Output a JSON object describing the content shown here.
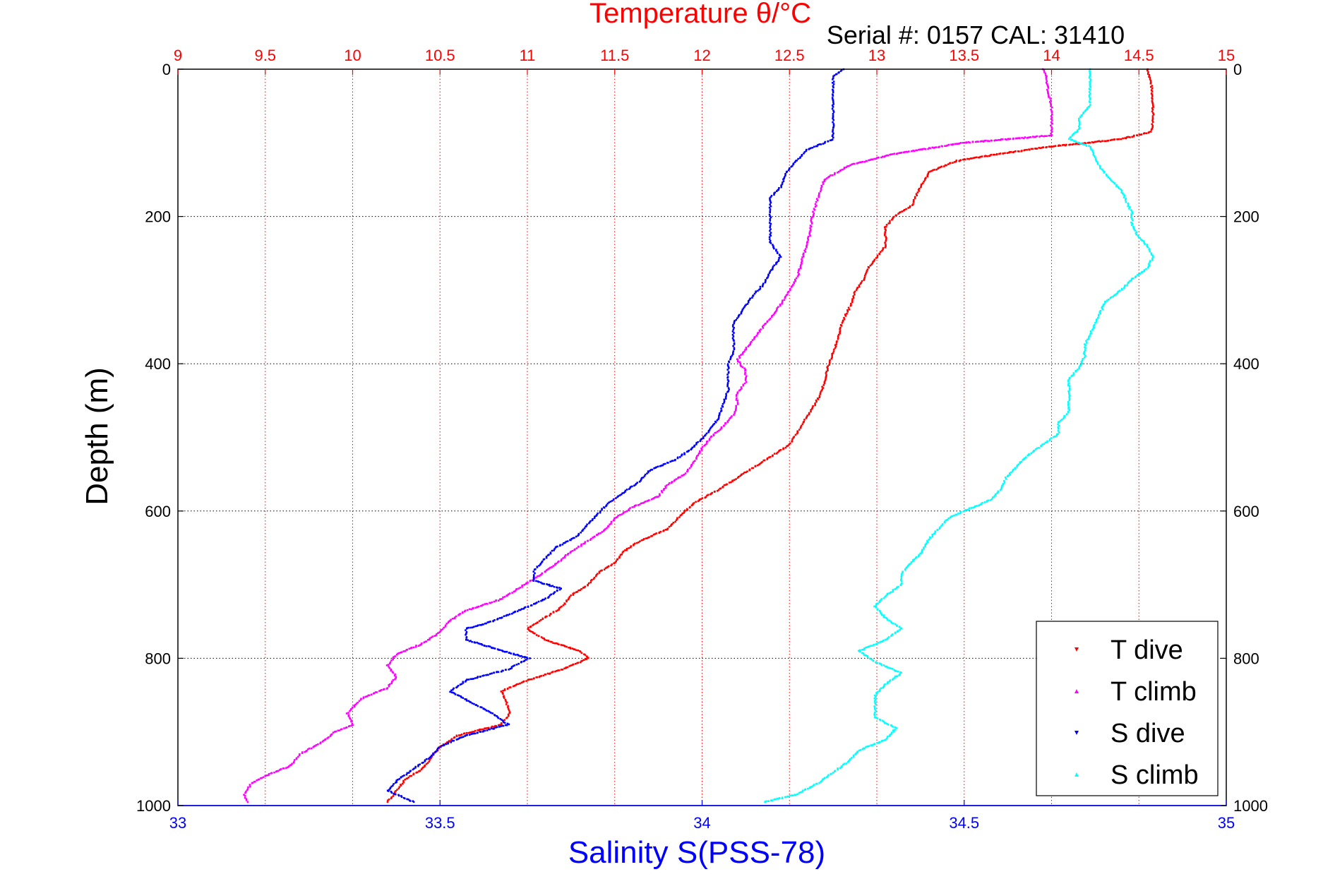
{
  "chart_data": {
    "type": "scatter",
    "title": "Temperature θ/°C",
    "subtitle": "Serial #: 0157  CAL: 31410",
    "xlabel": "Salinity S(PSS-78)",
    "ylabel": "Depth (m)",
    "x_bottom": {
      "label": "Salinity S(PSS-78)",
      "range": [
        33,
        35
      ],
      "ticks": [
        "33",
        "33.5",
        "34",
        "34.5",
        "35"
      ],
      "color": "#0000ff"
    },
    "x_top": {
      "label": "Temperature θ/°C",
      "range": [
        9,
        15
      ],
      "ticks": [
        "9",
        "9.5",
        "10",
        "10.5",
        "11",
        "11.5",
        "12",
        "12.5",
        "13",
        "13.5",
        "14",
        "14.5",
        "15"
      ],
      "color": "#ff0000"
    },
    "y_axis": {
      "label": "Depth (m)",
      "range": [
        0,
        1000
      ],
      "reversed": true,
      "ticks": [
        "0",
        "200",
        "400",
        "600",
        "800",
        "1000"
      ]
    },
    "grid": true,
    "legend_position": "bottom-right",
    "series": [
      {
        "name": "T dive",
        "axis": "temperature",
        "color": "#ff0000",
        "points": [
          [
            14.55,
            0
          ],
          [
            14.57,
            20
          ],
          [
            14.58,
            45
          ],
          [
            14.58,
            70
          ],
          [
            14.57,
            85
          ],
          [
            14.4,
            95
          ],
          [
            14.0,
            105
          ],
          [
            13.7,
            115
          ],
          [
            13.45,
            125
          ],
          [
            13.3,
            140
          ],
          [
            13.25,
            160
          ],
          [
            13.2,
            185
          ],
          [
            13.1,
            200
          ],
          [
            13.05,
            215
          ],
          [
            13.05,
            240
          ],
          [
            13.0,
            255
          ],
          [
            12.95,
            270
          ],
          [
            12.93,
            285
          ],
          [
            12.88,
            300
          ],
          [
            12.85,
            320
          ],
          [
            12.8,
            345
          ],
          [
            12.78,
            365
          ],
          [
            12.75,
            385
          ],
          [
            12.72,
            405
          ],
          [
            12.7,
            425
          ],
          [
            12.67,
            445
          ],
          [
            12.62,
            465
          ],
          [
            12.58,
            480
          ],
          [
            12.54,
            495
          ],
          [
            12.5,
            510
          ],
          [
            12.4,
            525
          ],
          [
            12.3,
            540
          ],
          [
            12.2,
            555
          ],
          [
            12.1,
            570
          ],
          [
            11.95,
            590
          ],
          [
            11.88,
            605
          ],
          [
            11.8,
            625
          ],
          [
            11.65,
            640
          ],
          [
            11.55,
            655
          ],
          [
            11.5,
            670
          ],
          [
            11.4,
            685
          ],
          [
            11.35,
            700
          ],
          [
            11.25,
            715
          ],
          [
            11.2,
            730
          ],
          [
            11.1,
            745
          ],
          [
            11.0,
            760
          ],
          [
            11.1,
            775
          ],
          [
            11.3,
            790
          ],
          [
            11.35,
            800
          ],
          [
            11.2,
            815
          ],
          [
            11.0,
            830
          ],
          [
            10.85,
            845
          ],
          [
            10.88,
            860
          ],
          [
            10.9,
            875
          ],
          [
            10.85,
            890
          ],
          [
            10.6,
            905
          ],
          [
            10.5,
            920
          ],
          [
            10.45,
            935
          ],
          [
            10.4,
            950
          ],
          [
            10.3,
            965
          ],
          [
            10.25,
            980
          ],
          [
            10.2,
            995
          ]
        ]
      },
      {
        "name": "T climb",
        "axis": "temperature",
        "color": "#ff00ff",
        "points": [
          [
            9.4,
            995
          ],
          [
            9.38,
            985
          ],
          [
            9.42,
            970
          ],
          [
            9.5,
            960
          ],
          [
            9.65,
            945
          ],
          [
            9.7,
            930
          ],
          [
            9.82,
            915
          ],
          [
            9.9,
            900
          ],
          [
            10.0,
            890
          ],
          [
            9.97,
            875
          ],
          [
            10.05,
            855
          ],
          [
            10.2,
            840
          ],
          [
            10.25,
            825
          ],
          [
            10.2,
            810
          ],
          [
            10.25,
            795
          ],
          [
            10.4,
            780
          ],
          [
            10.5,
            765
          ],
          [
            10.55,
            750
          ],
          [
            10.65,
            735
          ],
          [
            10.85,
            720
          ],
          [
            10.95,
            705
          ],
          [
            11.05,
            690
          ],
          [
            11.15,
            675
          ],
          [
            11.25,
            655
          ],
          [
            11.35,
            640
          ],
          [
            11.45,
            625
          ],
          [
            11.5,
            610
          ],
          [
            11.6,
            595
          ],
          [
            11.75,
            580
          ],
          [
            11.8,
            565
          ],
          [
            11.9,
            550
          ],
          [
            11.95,
            535
          ],
          [
            12.0,
            515
          ],
          [
            12.05,
            500
          ],
          [
            12.12,
            485
          ],
          [
            12.18,
            470
          ],
          [
            12.2,
            455
          ],
          [
            12.2,
            440
          ],
          [
            12.25,
            425
          ],
          [
            12.25,
            410
          ],
          [
            12.2,
            395
          ],
          [
            12.25,
            380
          ],
          [
            12.3,
            365
          ],
          [
            12.35,
            350
          ],
          [
            12.4,
            335
          ],
          [
            12.45,
            320
          ],
          [
            12.5,
            300
          ],
          [
            12.55,
            280
          ],
          [
            12.57,
            260
          ],
          [
            12.6,
            240
          ],
          [
            12.62,
            220
          ],
          [
            12.63,
            200
          ],
          [
            12.65,
            185
          ],
          [
            12.67,
            170
          ],
          [
            12.7,
            150
          ],
          [
            12.85,
            130
          ],
          [
            13.1,
            115
          ],
          [
            13.5,
            100
          ],
          [
            14.0,
            90
          ],
          [
            14.0,
            70
          ],
          [
            14.0,
            50
          ],
          [
            13.98,
            30
          ],
          [
            13.97,
            10
          ],
          [
            13.95,
            0
          ]
        ]
      },
      {
        "name": "S dive",
        "axis": "salinity",
        "color": "#0000ff",
        "points": [
          [
            34.27,
            0
          ],
          [
            34.25,
            10
          ],
          [
            34.25,
            25
          ],
          [
            34.25,
            45
          ],
          [
            34.25,
            65
          ],
          [
            34.25,
            85
          ],
          [
            34.25,
            95
          ],
          [
            34.2,
            110
          ],
          [
            34.18,
            125
          ],
          [
            34.16,
            140
          ],
          [
            34.15,
            160
          ],
          [
            34.13,
            175
          ],
          [
            34.13,
            195
          ],
          [
            34.13,
            215
          ],
          [
            34.13,
            235
          ],
          [
            34.15,
            255
          ],
          [
            34.13,
            275
          ],
          [
            34.12,
            290
          ],
          [
            34.1,
            305
          ],
          [
            34.08,
            325
          ],
          [
            34.06,
            345
          ],
          [
            34.06,
            365
          ],
          [
            34.06,
            385
          ],
          [
            34.05,
            400
          ],
          [
            34.05,
            415
          ],
          [
            34.05,
            435
          ],
          [
            34.04,
            455
          ],
          [
            34.03,
            475
          ],
          [
            34.01,
            495
          ],
          [
            33.98,
            515
          ],
          [
            33.95,
            530
          ],
          [
            33.9,
            545
          ],
          [
            33.88,
            560
          ],
          [
            33.85,
            575
          ],
          [
            33.82,
            590
          ],
          [
            33.8,
            605
          ],
          [
            33.78,
            620
          ],
          [
            33.76,
            635
          ],
          [
            33.72,
            650
          ],
          [
            33.7,
            665
          ],
          [
            33.68,
            680
          ],
          [
            33.68,
            695
          ],
          [
            33.73,
            705
          ],
          [
            33.7,
            720
          ],
          [
            33.65,
            735
          ],
          [
            33.6,
            750
          ],
          [
            33.55,
            760
          ],
          [
            33.55,
            775
          ],
          [
            33.62,
            790
          ],
          [
            33.67,
            800
          ],
          [
            33.63,
            815
          ],
          [
            33.55,
            830
          ],
          [
            33.52,
            845
          ],
          [
            33.56,
            860
          ],
          [
            33.6,
            875
          ],
          [
            33.63,
            890
          ],
          [
            33.55,
            905
          ],
          [
            33.5,
            920
          ],
          [
            33.48,
            935
          ],
          [
            33.45,
            950
          ],
          [
            33.42,
            965
          ],
          [
            33.4,
            980
          ],
          [
            33.45,
            995
          ]
        ]
      },
      {
        "name": "S climb",
        "axis": "salinity",
        "color": "#00ffff",
        "points": [
          [
            34.12,
            995
          ],
          [
            34.18,
            985
          ],
          [
            34.22,
            970
          ],
          [
            34.25,
            955
          ],
          [
            34.28,
            940
          ],
          [
            34.3,
            925
          ],
          [
            34.35,
            910
          ],
          [
            34.37,
            895
          ],
          [
            34.33,
            880
          ],
          [
            34.33,
            865
          ],
          [
            34.33,
            850
          ],
          [
            34.35,
            835
          ],
          [
            34.38,
            820
          ],
          [
            34.33,
            805
          ],
          [
            34.3,
            790
          ],
          [
            34.35,
            775
          ],
          [
            34.38,
            760
          ],
          [
            34.35,
            745
          ],
          [
            34.33,
            730
          ],
          [
            34.35,
            715
          ],
          [
            34.38,
            700
          ],
          [
            34.38,
            685
          ],
          [
            34.4,
            670
          ],
          [
            34.42,
            655
          ],
          [
            34.43,
            640
          ],
          [
            34.45,
            625
          ],
          [
            34.47,
            610
          ],
          [
            34.5,
            600
          ],
          [
            34.55,
            585
          ],
          [
            34.57,
            570
          ],
          [
            34.58,
            555
          ],
          [
            34.6,
            540
          ],
          [
            34.62,
            525
          ],
          [
            34.65,
            510
          ],
          [
            34.68,
            495
          ],
          [
            34.68,
            480
          ],
          [
            34.7,
            465
          ],
          [
            34.7,
            450
          ],
          [
            34.7,
            435
          ],
          [
            34.7,
            420
          ],
          [
            34.72,
            405
          ],
          [
            34.73,
            390
          ],
          [
            34.73,
            375
          ],
          [
            34.74,
            360
          ],
          [
            34.75,
            345
          ],
          [
            34.76,
            330
          ],
          [
            34.77,
            315
          ],
          [
            34.8,
            300
          ],
          [
            34.82,
            285
          ],
          [
            34.85,
            270
          ],
          [
            34.86,
            255
          ],
          [
            34.85,
            240
          ],
          [
            34.83,
            225
          ],
          [
            34.82,
            210
          ],
          [
            34.82,
            195
          ],
          [
            34.81,
            180
          ],
          [
            34.8,
            165
          ],
          [
            34.78,
            150
          ],
          [
            34.76,
            135
          ],
          [
            34.75,
            120
          ],
          [
            34.74,
            105
          ],
          [
            34.7,
            95
          ],
          [
            34.72,
            80
          ],
          [
            34.72,
            65
          ],
          [
            34.74,
            50
          ],
          [
            34.74,
            35
          ],
          [
            34.74,
            20
          ],
          [
            34.74,
            5
          ],
          [
            34.74,
            0
          ]
        ]
      }
    ]
  }
}
